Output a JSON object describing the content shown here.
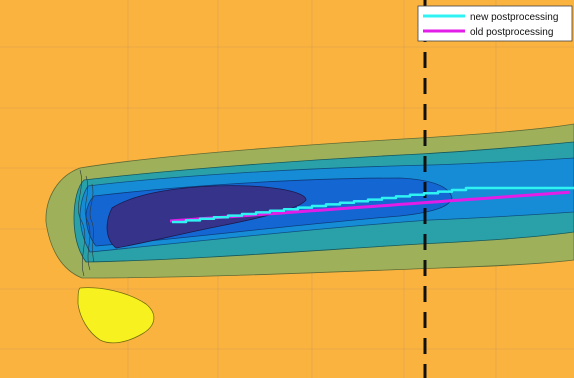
{
  "chart_data": {
    "type": "contour",
    "title": "",
    "xlabel": "",
    "ylabel": "",
    "grid": true,
    "legend_position": "top-right",
    "colors": {
      "background": "#fbb33f",
      "level_green": "#9fb05a",
      "level_teal": "#2aa0a8",
      "level_blue_1": "#168cd6",
      "level_blue_2": "#1466d2",
      "level_dark": "#35338a",
      "blob_yellow": "#f7f21f",
      "grid": "#c99a55",
      "dashed_line": "#111111"
    },
    "series": [
      {
        "name": "new postprocessing",
        "color": "#2ff3f3"
      },
      {
        "name": "old postprocessing",
        "color": "#e21de8"
      }
    ]
  }
}
